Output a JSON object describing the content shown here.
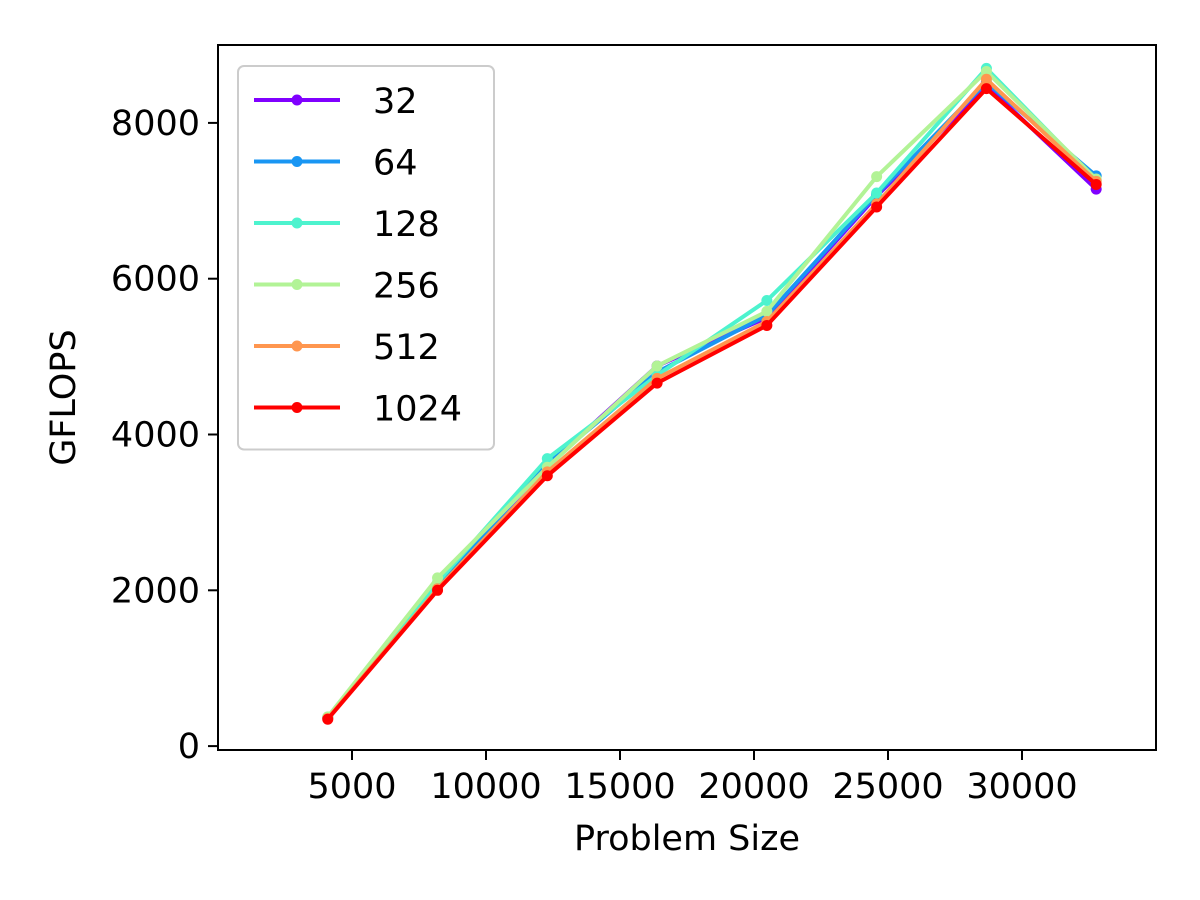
{
  "chart_data": {
    "type": "line",
    "title": "",
    "xlabel": "Problem Size",
    "ylabel": "GFLOPS",
    "x": [
      4096,
      8192,
      12288,
      16384,
      20480,
      24576,
      28672,
      32768
    ],
    "xlim": [
      0,
      35000
    ],
    "ylim": [
      -50,
      9000
    ],
    "xticks": [
      5000,
      10000,
      15000,
      20000,
      25000,
      30000
    ],
    "yticks": [
      0,
      2000,
      4000,
      6000,
      8000
    ],
    "grid": false,
    "legend_position": "upper-left",
    "series": [
      {
        "name": "32",
        "color": "#8000ff",
        "values": [
          370,
          2080,
          3600,
          4880,
          5500,
          7060,
          8480,
          7150
        ]
      },
      {
        "name": "64",
        "color": "#1996f3",
        "values": [
          365,
          2060,
          3620,
          4800,
          5530,
          7080,
          8520,
          7320
        ]
      },
      {
        "name": "128",
        "color": "#4df3ce",
        "values": [
          360,
          2100,
          3690,
          4760,
          5720,
          7100,
          8700,
          7260
        ]
      },
      {
        "name": "256",
        "color": "#b2f396",
        "values": [
          375,
          2160,
          3580,
          4880,
          5580,
          7310,
          8660,
          7280
        ]
      },
      {
        "name": "512",
        "color": "#ff964f",
        "values": [
          355,
          2020,
          3520,
          4720,
          5450,
          6960,
          8560,
          7250
        ]
      },
      {
        "name": "1024",
        "color": "#ff0000",
        "values": [
          345,
          2000,
          3470,
          4660,
          5400,
          6920,
          8440,
          7210
        ]
      }
    ]
  }
}
